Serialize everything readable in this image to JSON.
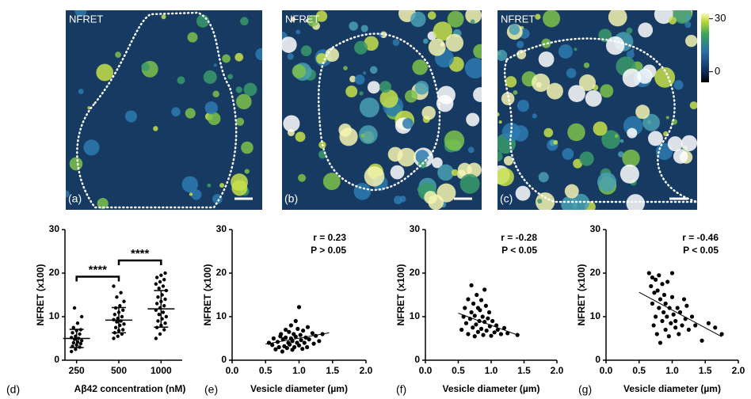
{
  "images": [
    {
      "label": "NFRET",
      "panel": "(a)"
    },
    {
      "label": "NFRET",
      "panel": "(b)"
    },
    {
      "label": "NFRET",
      "panel": "(c)"
    }
  ],
  "colorbar": {
    "lim": [
      -6,
      33
    ],
    "ticks": [
      0,
      30
    ]
  },
  "chart_data": [
    {
      "type": "dot",
      "panel": "(d)",
      "xlabel": "Aβ42 concentration (nM)",
      "ylabel": "NFRET (x100)",
      "categories": [
        "250",
        "500",
        "1000"
      ],
      "values": [
        [
          2,
          2.5,
          3,
          3.2,
          3.5,
          3.8,
          4,
          4.2,
          4.5,
          4.8,
          5,
          5.2,
          5.5,
          6,
          6.3,
          6.8,
          7,
          7.5,
          8.5,
          10,
          12
        ],
        [
          5,
          5.5,
          6,
          6.3,
          6.8,
          7,
          7.5,
          8,
          8.3,
          8.8,
          9,
          9.3,
          9.6,
          10,
          10.5,
          11,
          11.5,
          12,
          12.5,
          13.5,
          14.5,
          15.5,
          17
        ],
        [
          5,
          6,
          7,
          7.5,
          8,
          8.5,
          9,
          9.5,
          10,
          10.5,
          11,
          11.5,
          12,
          12.5,
          13,
          13.5,
          14,
          14.5,
          15,
          16,
          16.5,
          17,
          17.5,
          18,
          18.5,
          19,
          19.5,
          20
        ]
      ],
      "means": [
        5,
        9.2,
        11.8
      ],
      "sds": [
        2.1,
        2.9,
        4.2
      ],
      "significance": [
        {
          "from": 0,
          "to": 1,
          "label": "****"
        },
        {
          "from": 1,
          "to": 2,
          "label": "****"
        }
      ],
      "ylim": [
        0,
        30
      ],
      "yticks": [
        0,
        10,
        20,
        30
      ],
      "color": "#000000"
    },
    {
      "type": "scatter",
      "panel": "(e)",
      "xlabel": "Vesicle diameter (µm)",
      "ylabel": "NFRET (x100)",
      "stats": [
        "r = 0.23",
        "P > 0.05"
      ],
      "x": [
        0.55,
        0.6,
        0.62,
        0.65,
        0.68,
        0.7,
        0.72,
        0.73,
        0.75,
        0.76,
        0.78,
        0.8,
        0.8,
        0.82,
        0.84,
        0.85,
        0.86,
        0.88,
        0.88,
        0.9,
        0.9,
        0.92,
        0.93,
        0.95,
        0.95,
        0.97,
        0.98,
        1.0,
        1.0,
        1.02,
        1.03,
        1.05,
        1.06,
        1.08,
        1.1,
        1.12,
        1.13,
        1.15,
        1.2,
        1.22,
        1.25,
        1.3,
        1.35
      ],
      "y": [
        4,
        3.5,
        5,
        2.5,
        4.2,
        3,
        5.5,
        6,
        2,
        4.8,
        3.2,
        7,
        5.2,
        2.8,
        4,
        6.5,
        3.6,
        8,
        5,
        2.4,
        4.4,
        6,
        3,
        9,
        5.4,
        4,
        7.2,
        3.4,
        12.2,
        5.8,
        4.6,
        2.6,
        6.8,
        4,
        5.2,
        3,
        7.6,
        4.8,
        6.2,
        3.8,
        5.6,
        4.4,
        6
      ],
      "fit": {
        "x": [
          0.5,
          1.45
        ],
        "y": [
          3.7,
          6.3
        ]
      },
      "xlim": [
        0,
        2
      ],
      "ylim": [
        0,
        30
      ],
      "xticks": [
        {
          "value": 0,
          "label": "0.0"
        },
        {
          "value": 0.5,
          "label": "0.5"
        },
        {
          "value": 1,
          "label": "1.0"
        },
        {
          "value": 1.5,
          "label": "1.5"
        },
        {
          "value": 2,
          "label": "2.0"
        }
      ],
      "yticks": [
        0,
        10,
        20,
        30
      ],
      "color": "#000000"
    },
    {
      "type": "scatter",
      "panel": "(f)",
      "xlabel": "Vesicle diameter (µm)",
      "ylabel": "NFRET (x100)",
      "stats": [
        "r = -0.28",
        "P < 0.05"
      ],
      "x": [
        0.55,
        0.58,
        0.6,
        0.62,
        0.65,
        0.65,
        0.68,
        0.7,
        0.7,
        0.72,
        0.73,
        0.75,
        0.75,
        0.77,
        0.78,
        0.8,
        0.8,
        0.82,
        0.83,
        0.85,
        0.85,
        0.87,
        0.88,
        0.9,
        0.9,
        0.92,
        0.93,
        0.95,
        0.97,
        0.98,
        1.0,
        1.02,
        1.05,
        1.08,
        1.1,
        1.15,
        1.2,
        1.25,
        1.4
      ],
      "y": [
        7,
        10,
        12,
        8.5,
        14,
        6,
        9.5,
        17.2,
        11,
        7.5,
        13,
        5.5,
        10.2,
        8.2,
        15,
        12,
        6.5,
        9,
        11.5,
        7.2,
        13.8,
        10,
        5.8,
        8.8,
        16.2,
        12.5,
        6.8,
        9.6,
        11,
        7.8,
        5.6,
        9,
        6.4,
        8,
        7,
        6,
        7.4,
        6.2,
        5.8
      ],
      "fit": {
        "x": [
          0.5,
          1.4
        ],
        "y": [
          10.8,
          5.8
        ]
      },
      "xlim": [
        0,
        2
      ],
      "ylim": [
        0,
        30
      ],
      "xticks": [
        {
          "value": 0,
          "label": "0.0"
        },
        {
          "value": 0.5,
          "label": "0.5"
        },
        {
          "value": 1,
          "label": "1.0"
        },
        {
          "value": 1.5,
          "label": "1.5"
        },
        {
          "value": 2,
          "label": "2.0"
        }
      ],
      "yticks": [
        0,
        10,
        20,
        30
      ],
      "color": "#000000"
    },
    {
      "type": "scatter",
      "panel": "(g)",
      "xlabel": "Vesicle diameter (µm)",
      "ylabel": "NFRET (x100)",
      "stats": [
        "r = -0.46",
        "P < 0.05"
      ],
      "x": [
        0.65,
        0.68,
        0.7,
        0.7,
        0.72,
        0.73,
        0.75,
        0.75,
        0.77,
        0.78,
        0.8,
        0.8,
        0.82,
        0.82,
        0.85,
        0.85,
        0.87,
        0.88,
        0.9,
        0.9,
        0.92,
        0.93,
        0.95,
        0.96,
        0.98,
        1.0,
        1.0,
        1.02,
        1.05,
        1.05,
        1.08,
        1.1,
        1.12,
        1.15,
        1.18,
        1.2,
        1.22,
        1.25,
        1.3,
        1.35,
        1.45,
        1.55,
        1.65,
        1.75
      ],
      "y": [
        20,
        17,
        13,
        19,
        8,
        15.5,
        18.5,
        10,
        6,
        16,
        12,
        19.5,
        14,
        4,
        9,
        17.5,
        11,
        15,
        7,
        13,
        10,
        18,
        5.5,
        12,
        8.5,
        14.5,
        20,
        10.5,
        7.5,
        9,
        12,
        6,
        11,
        8,
        14,
        9.5,
        12.5,
        7,
        10,
        8,
        4.5,
        8.5,
        7.5,
        6
      ],
      "fit": {
        "x": [
          0.5,
          1.75
        ],
        "y": [
          15.6,
          5.4
        ]
      },
      "xlim": [
        0,
        2
      ],
      "ylim": [
        0,
        30
      ],
      "xticks": [
        {
          "value": 0,
          "label": "0.0"
        },
        {
          "value": 0.5,
          "label": "0.5"
        },
        {
          "value": 1,
          "label": "1.0"
        },
        {
          "value": 1.5,
          "label": "1.5"
        },
        {
          "value": 2,
          "label": "2.0"
        }
      ],
      "yticks": [
        0,
        10,
        20,
        30
      ],
      "color": "#000000"
    }
  ]
}
